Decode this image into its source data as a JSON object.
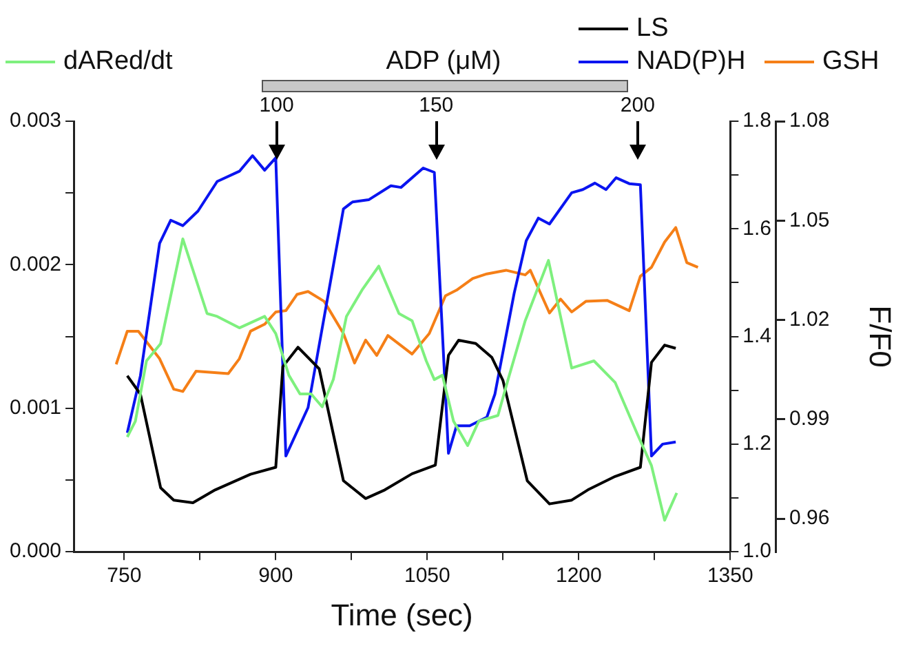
{
  "chart_data": {
    "type": "line",
    "xlabel": "Time (sec)",
    "y3label": "F/F0",
    "xlim": [
      700,
      1350
    ],
    "xticks": [
      750,
      {
        "value": 825,
        "label": null
      },
      900,
      {
        "value": 975,
        "label": null
      },
      1050,
      {
        "value": 1125,
        "label": null
      },
      1200,
      {
        "value": 1275,
        "label": null
      },
      1350
    ],
    "ylim": [
      0,
      0.003
    ],
    "yticks": [
      {
        "value": 0,
        "label": "0.000"
      },
      {
        "value": 0.0005,
        "label": null
      },
      {
        "value": 0.001,
        "label": "0.001"
      },
      {
        "value": 0.0015,
        "label": null
      },
      {
        "value": 0.002,
        "label": "0.002"
      },
      {
        "value": 0.0025,
        "label": null
      },
      {
        "value": 0.003,
        "label": "0.003"
      }
    ],
    "y2lim": [
      1.0,
      1.8
    ],
    "y2ticks": [
      {
        "value": 1.0,
        "label": "1.0"
      },
      {
        "value": 1.1,
        "label": null
      },
      1.2,
      {
        "value": 1.3,
        "label": null
      },
      1.4,
      {
        "value": 1.5,
        "label": null
      },
      1.6,
      {
        "value": 1.7,
        "label": null
      },
      1.8
    ],
    "y3lim": [
      0.95,
      1.08
    ],
    "y3ticks": [
      0.96,
      0.99,
      1.02,
      1.05,
      1.08
    ],
    "grid": false,
    "legend": "top",
    "marker": "none",
    "line_style": "solid",
    "annotations": [
      "ADP (μM)",
      "100",
      "150",
      "200"
    ],
    "series": [
      {
        "name": "dARed/dt",
        "color": "#7ef07e",
        "axis": "y",
        "x": [
          753,
          761,
          772,
          786,
          808,
          832,
          842,
          864,
          889,
          900,
          913,
          924,
          935,
          946,
          957,
          970,
          986,
          1002,
          1022,
          1035,
          1049,
          1057,
          1065,
          1076,
          1090,
          1101,
          1120,
          1130,
          1147,
          1170,
          1193,
          1215,
          1236,
          1258,
          1272,
          1285,
          1297
        ],
        "values": [
          0.0008,
          0.00091,
          0.00133,
          0.00145,
          0.00218,
          0.00166,
          0.00164,
          0.00156,
          0.00164,
          0.00152,
          0.00123,
          0.0011,
          0.0011,
          0.00101,
          0.0012,
          0.00164,
          0.00183,
          0.00199,
          0.00166,
          0.00161,
          0.00133,
          0.0012,
          0.00123,
          0.00091,
          0.00074,
          0.00091,
          0.00095,
          0.0012,
          0.00161,
          0.00203,
          0.00128,
          0.00133,
          0.00118,
          0.00082,
          0.0006,
          0.00022,
          0.00041
        ]
      },
      {
        "name": "LS",
        "color": "#000000",
        "axis": "y2",
        "x": [
          753,
          766,
          786,
          799,
          818,
          840,
          875,
          900,
          907,
          922,
          943,
          967,
          989,
          1008,
          1035,
          1058,
          1071,
          1081,
          1098,
          1114,
          1125,
          1149,
          1171,
          1193,
          1209,
          1236,
          1261,
          1272,
          1285,
          1296
        ],
        "values": [
          1.327,
          1.293,
          1.119,
          1.096,
          1.091,
          1.115,
          1.144,
          1.157,
          1.344,
          1.38,
          1.34,
          1.132,
          1.099,
          1.115,
          1.145,
          1.161,
          1.365,
          1.393,
          1.387,
          1.361,
          1.318,
          1.132,
          1.089,
          1.096,
          1.115,
          1.14,
          1.157,
          1.352,
          1.384,
          1.378
        ]
      },
      {
        "name": "NAD(P)H",
        "color": "#0a14f0",
        "axis": "y2",
        "x": [
          753,
          766,
          785,
          796,
          808,
          823,
          842,
          864,
          877,
          889,
          900,
          910,
          932,
          967,
          976,
          992,
          1014,
          1024,
          1046,
          1057,
          1071,
          1079,
          1092,
          1109,
          1117,
          1136,
          1148,
          1160,
          1171,
          1193,
          1204,
          1216,
          1227,
          1237,
          1250,
          1261,
          1272,
          1283,
          1296
        ],
        "values": [
          1.221,
          1.327,
          1.573,
          1.616,
          1.606,
          1.633,
          1.688,
          1.707,
          1.736,
          1.709,
          1.732,
          1.178,
          1.268,
          1.637,
          1.65,
          1.654,
          1.68,
          1.677,
          1.713,
          1.705,
          1.183,
          1.234,
          1.234,
          1.25,
          1.293,
          1.48,
          1.578,
          1.62,
          1.609,
          1.667,
          1.673,
          1.685,
          1.673,
          1.695,
          1.684,
          1.682,
          1.178,
          1.2,
          1.204
        ]
      },
      {
        "name": "GSH",
        "color": "#f57f17",
        "axis": "y3",
        "x": [
          742,
          753,
          764,
          785,
          799,
          808,
          821,
          853,
          864,
          875,
          889,
          900,
          910,
          921,
          932,
          948,
          967,
          978,
          989,
          1000,
          1011,
          1035,
          1052,
          1068,
          1079,
          1095,
          1109,
          1128,
          1147,
          1152,
          1171,
          1182,
          1193,
          1207,
          1228,
          1250,
          1261,
          1272,
          1285,
          1296,
          1307,
          1318
        ],
        "values": [
          1.0066,
          1.0166,
          1.0166,
          1.0083,
          0.9991,
          0.9984,
          1.0045,
          1.0038,
          1.0083,
          1.0166,
          1.0187,
          1.0224,
          1.0228,
          1.0277,
          1.0286,
          1.0256,
          1.0159,
          1.007,
          1.0139,
          1.0093,
          1.0153,
          1.0097,
          1.0159,
          1.0273,
          1.029,
          1.0325,
          1.0339,
          1.035,
          1.0336,
          1.035,
          1.0221,
          1.0263,
          1.0224,
          1.0256,
          1.0259,
          1.0228,
          1.0332,
          1.0359,
          1.0435,
          1.0479,
          1.0373,
          1.0359
        ]
      }
    ]
  }
}
